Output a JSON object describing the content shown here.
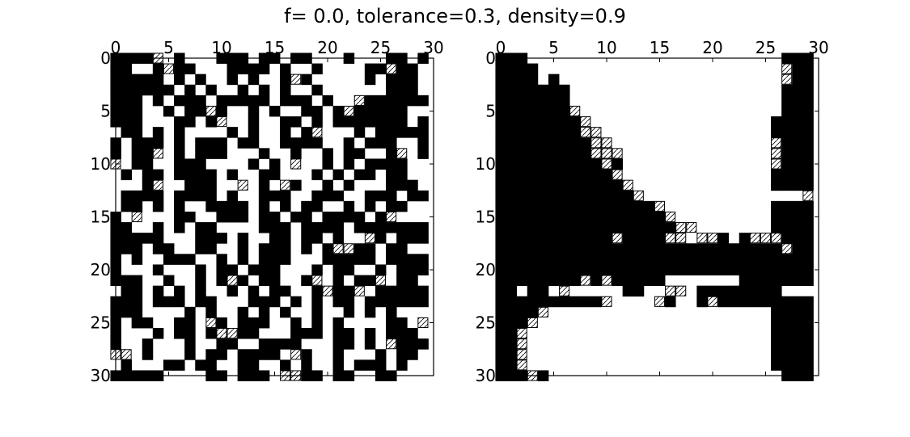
{
  "figure": {
    "title": "f= 0.0, tolerance=0.3, density=0.9"
  },
  "colors": {
    "filled": "#000000",
    "empty": "#ffffff",
    "frame": "#000000",
    "hatch": "#000000"
  },
  "chart_data": [
    {
      "type": "heatmap",
      "panel": "left",
      "xlim": [
        0,
        30
      ],
      "ylim": [
        0,
        30
      ],
      "x_axis_position": "top",
      "y_axis_inverted": true,
      "xticks": [
        0,
        5,
        10,
        15,
        20,
        25,
        30
      ],
      "yticks": [
        0,
        5,
        10,
        15,
        20,
        25,
        30
      ],
      "legend": "none",
      "cell_states": "#=filled, .=empty, H=hatched/unhappy",
      "rows": [
        "####H.#...###.##.##...#...##.#",
        "##..#H##...####.#..#....##H##.",
        "#####.#.#..#.#..#H#.....#.###.",
        "######.#.#..#.#.#..#......###.",
        "###.#.###.#####.###.#..H######",
        "###..#.##H#..#.#..##.#H#####..",
        "###...##.#H..#..##.#.#######.#",
        ".##.#.#....#.#..#.#H...#.#####",
        "#.###.#.###.##..####..#.###..#",
        "#.##H.#.###...#..#..#.##..#H.#",
        "H.##..###....#.#.H..#.#.####..",
        ".#.##.####.#..##...#.#.##.##..",
        "...#H..###..H.#.H#..#.#...###.",
        ".####.####.#..###..###..###.##",
        ".##.#.#..####.#.#.##..#.#.##..",
        "#.H...##..###.##.##.####.#H...",
        "##..#.#.##....###.####.#######",
        "#####...###.#..##.##.#..H#.###",
        "###.##..##..#.###.#.#HH##.##..",
        "#.#..###..#.#.###...#####.####",
        "#...#...#.##.###...#.##..#.###",
        "###..#..#.#H#.##..#H.#.##H.##.",
        ".##.#.#.#..#.#.##..#H##H.#####",
        "###.###.##...###.#.#.##.######",
        "###....#.#..#.#.#..#..#.#.#...",
        "#.##..##.H#.###..#.#.#....##.H",
        "#...#.##.#HH##...###.##.#.###.",
        "#..#...#..##..####...##.#.H###",
        "HH.#...#.##.####.H#..#...#.##.",
        ".#...##.##..##..#.#..#.###.#..",
        "#####....##.###.HH##.##..##..."
      ]
    },
    {
      "type": "heatmap",
      "panel": "right",
      "xlim": [
        0,
        30
      ],
      "ylim": [
        0,
        30
      ],
      "x_axis_position": "top",
      "y_axis_inverted": true,
      "xticks": [
        0,
        5,
        10,
        15,
        20,
        25,
        30
      ],
      "yticks": [
        0,
        5,
        10,
        15,
        20,
        25,
        30
      ],
      "legend": "none",
      "cell_states": "#=filled, .=empty, H=hatched/unhappy",
      "rows": [
        "###........................###",
        "####.......................H##",
        "####.#.....................H##",
        "#######....................###",
        "#######....................###",
        "#######H...................###",
        "########H.................####",
        "########HH................####",
        "#########HH...............H###",
        "#########HHH..............H###",
        "##########H#..............H###",
        "###########H..............####",
        "############H.............####",
        "#############H...............H",
        "###############H..........####",
        "################H.........####",
        "#################HH.......####",
        "###########H####HH.HH#.#HHH###",
        "###########################H##",
        "##############################",
        "##############################",
        "########H#H#####.......#######",
        "##.##.H.....##..HH.########...",
        "##########H....H#..#H#########",
        "####H.....................####",
        "###H......................####",
        "##H.......................####",
        "##H.......................####",
        "##H.......................####",
        "##H.......................####",
        "###H#......................###"
      ]
    }
  ]
}
